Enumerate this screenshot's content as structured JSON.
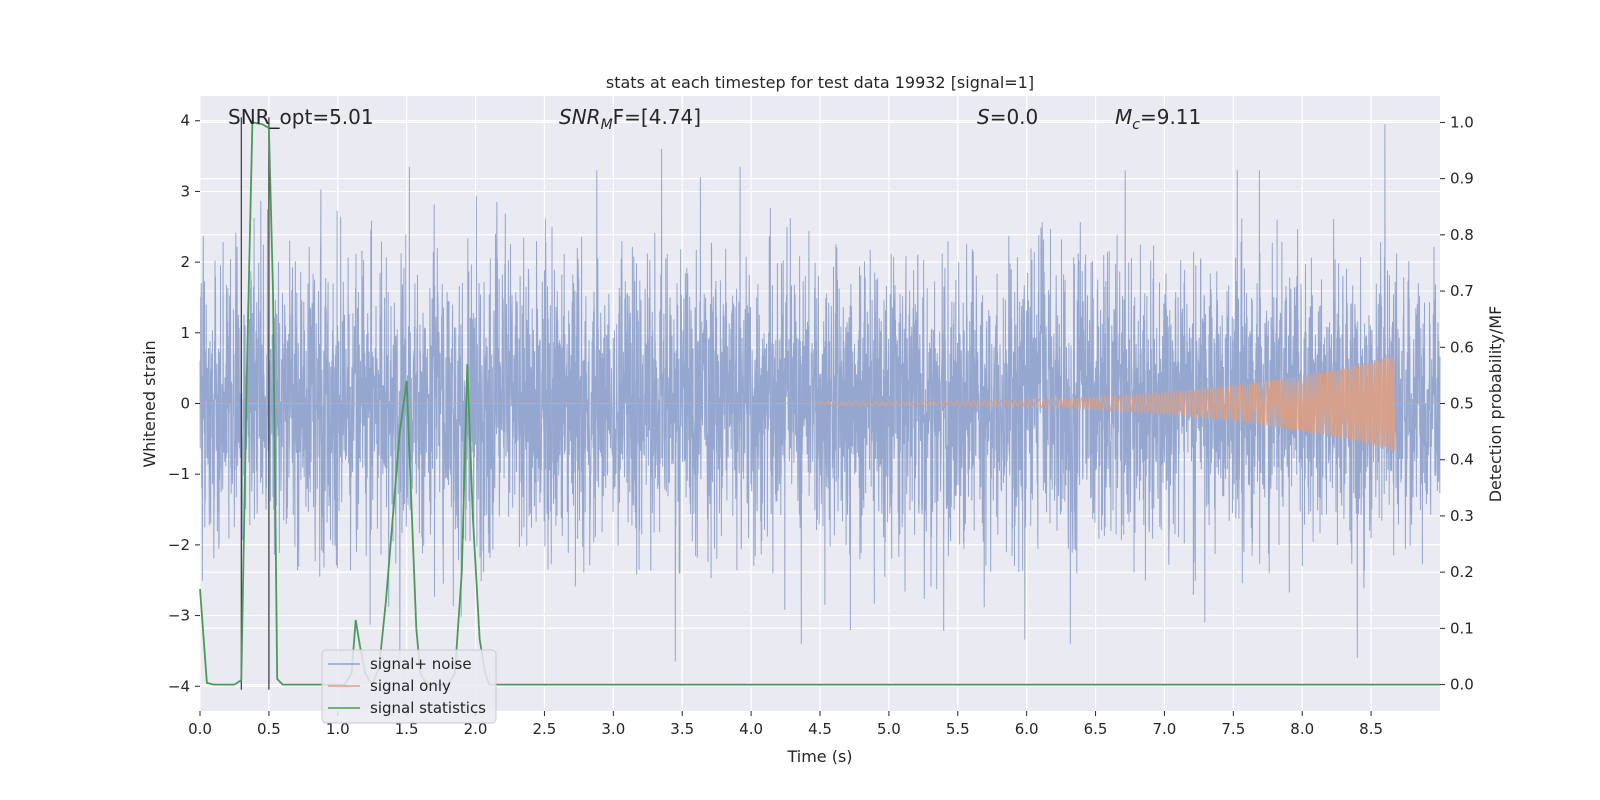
{
  "chart_data": {
    "type": "line",
    "title": "stats at each timestep for test data 19932 [signal=1]",
    "xlabel": "Time (s)",
    "ylabel_left": "Whitened strain",
    "ylabel_right": "Detection probability/MF",
    "xlim": [
      0.0,
      9.0
    ],
    "ylim_left": [
      -4.35,
      4.35
    ],
    "ylim_right": [
      -0.047,
      1.047
    ],
    "grid": true,
    "legend_position": "bottom-left",
    "x_ticks": [
      "0.0",
      "0.5",
      "1.0",
      "1.5",
      "2.0",
      "2.5",
      "3.0",
      "3.5",
      "4.0",
      "4.5",
      "5.0",
      "5.5",
      "6.0",
      "6.5",
      "7.0",
      "7.5",
      "8.0",
      "8.5"
    ],
    "y_left_ticks": [
      "4",
      "3",
      "2",
      "1",
      "0",
      "−1",
      "−2",
      "−3",
      "−4"
    ],
    "y_right_ticks": [
      "1.0",
      "0.9",
      "0.8",
      "0.7",
      "0.6",
      "0.5",
      "0.4",
      "0.3",
      "0.2",
      "0.1",
      "0.0"
    ],
    "annotations": {
      "snr_opt": "SNR_opt=5.01",
      "snr_mf_base": "SNR",
      "snr_mf_sub": "M",
      "snr_mf_rest": "F=[4.74]",
      "s_label": "S",
      "s_value": "=0.0",
      "mc_base": "M",
      "mc_sub": "c",
      "mc_value": "=9.11"
    },
    "vertical_markers": [
      0.3,
      0.5
    ],
    "series": [
      {
        "name": "signal+ noise",
        "axis": "left",
        "color": "#8da0cb",
        "noise_band": {
          "typical_amplitude": 1.6,
          "peaks": [
            [
              0.49,
              2.75
            ],
            [
              1.52,
              3.35
            ],
            [
              2.88,
              3.3
            ],
            [
              3.35,
              3.6
            ],
            [
              3.92,
              3.35
            ],
            [
              8.6,
              3.95
            ],
            [
              3.45,
              -3.65
            ],
            [
              8.4,
              -3.6
            ],
            [
              1.45,
              -3.7
            ]
          ]
        }
      },
      {
        "name": "signal only",
        "axis": "left",
        "color": "#e0a080",
        "chirp": {
          "start": 4.5,
          "end": 8.67,
          "peak_amplitude": 0.68,
          "low_amplitude": 0.03
        }
      },
      {
        "name": "signal statistics",
        "axis": "right",
        "color": "#4c9a58",
        "x": [
          0.0,
          0.05,
          0.1,
          0.2,
          0.25,
          0.3,
          0.34,
          0.38,
          0.45,
          0.5,
          0.53,
          0.56,
          0.6,
          0.7,
          0.8,
          0.9,
          1.0,
          1.05,
          1.1,
          1.13,
          1.16,
          1.2,
          1.25,
          1.3,
          1.35,
          1.4,
          1.45,
          1.5,
          1.53,
          1.57,
          1.6,
          1.65,
          1.7,
          1.75,
          1.8,
          1.85,
          1.9,
          1.94,
          1.98,
          2.03,
          2.07,
          2.1,
          2.5,
          3.0,
          4.0,
          5.0,
          6.0,
          7.0,
          8.0,
          9.0
        ],
        "y": [
          0.17,
          0.003,
          0.0,
          0.0,
          0.0,
          0.008,
          0.55,
          1.0,
          0.997,
          0.99,
          0.7,
          0.01,
          0.0,
          0.0,
          0.0,
          0.0,
          0.0,
          0.0,
          0.02,
          0.115,
          0.07,
          0.02,
          0.0,
          0.03,
          0.15,
          0.3,
          0.45,
          0.54,
          0.35,
          0.1,
          0.02,
          0.0,
          0.0,
          0.0,
          0.0,
          0.02,
          0.2,
          0.57,
          0.3,
          0.08,
          0.02,
          0.0,
          0.0,
          0.0,
          0.0,
          0.0,
          0.0,
          0.0,
          0.0,
          0.0
        ]
      }
    ]
  }
}
